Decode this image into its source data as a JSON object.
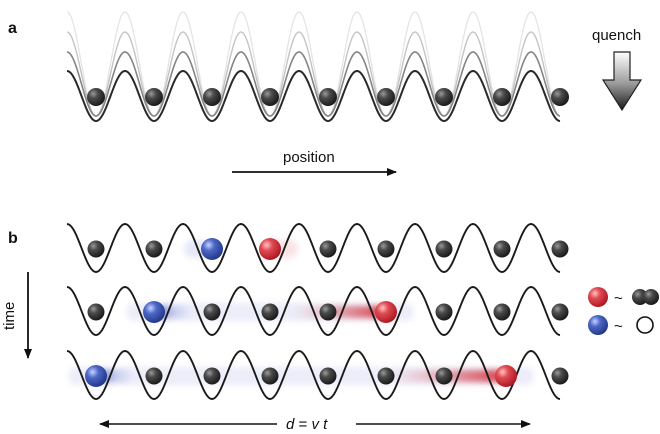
{
  "panel_a": {
    "label": "a",
    "quench_label": "quench",
    "axis_label": "position",
    "well_count": 9
  },
  "panel_b": {
    "label": "b",
    "time_label": "time",
    "distance": {
      "d": "d",
      "eq": " = ",
      "v": "v",
      "t": " t"
    },
    "legend": {
      "tilde": "~"
    },
    "rows": [
      {
        "blue_site": 2,
        "red_site": 3
      },
      {
        "blue_site": 1,
        "red_site": 5
      },
      {
        "blue_site": 0,
        "red_site": 7
      }
    ]
  },
  "colors": {
    "ink": "#111111",
    "particle_dark": "#2b2b2b",
    "particle_red": "#d42a36",
    "particle_blue": "#3552a8",
    "trail_red": "#d64550",
    "trail_blue": "#8a94d6",
    "grey_curves": [
      "#e4e4e4",
      "#c4c4c4",
      "#858585",
      "#2a2a2a"
    ]
  }
}
